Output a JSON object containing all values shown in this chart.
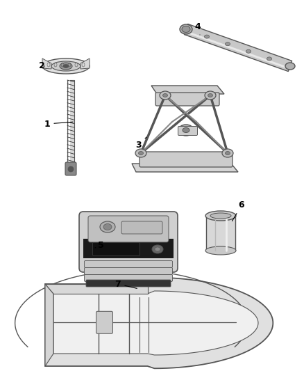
{
  "bg_color": "#ffffff",
  "line_color": "#aaaaaa",
  "dark_color": "#555555",
  "figsize": [
    4.38,
    5.33
  ],
  "dpi": 100
}
